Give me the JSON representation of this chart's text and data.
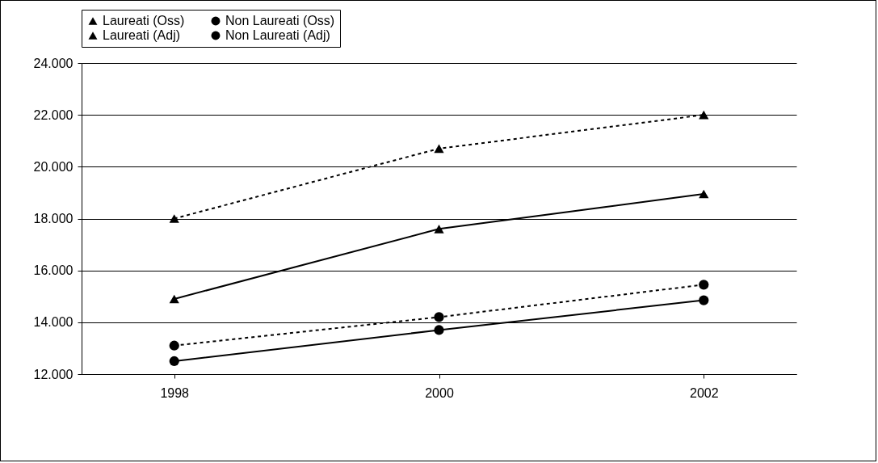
{
  "chart_data": {
    "type": "line",
    "categories": [
      "1998",
      "2000",
      "2002"
    ],
    "series": [
      {
        "name": "Laureati (Oss)",
        "color": "#000000",
        "marker": "triangle",
        "line_style": "dashed",
        "values": [
          18000,
          20700,
          22000
        ]
      },
      {
        "name": "Non Laureati (Oss)",
        "color": "#000000",
        "marker": "circle",
        "line_style": "dashed",
        "values": [
          13100,
          14200,
          15450
        ]
      },
      {
        "name": "Laureati (Adj)",
        "color": "#000000",
        "marker": "triangle",
        "line_style": "solid",
        "values": [
          14900,
          17600,
          18950
        ]
      },
      {
        "name": "Non Laureati (Adj)",
        "color": "#000000",
        "marker": "circle",
        "line_style": "solid",
        "values": [
          12500,
          13700,
          14850
        ]
      }
    ],
    "ylim": [
      12000,
      24000
    ],
    "yticks": [
      {
        "value": 12000,
        "label": "12.000"
      },
      {
        "value": 14000,
        "label": "14.000"
      },
      {
        "value": 16000,
        "label": "16.000"
      },
      {
        "value": 18000,
        "label": "18.000"
      },
      {
        "value": 20000,
        "label": "20.000"
      },
      {
        "value": 22000,
        "label": "22.000"
      },
      {
        "value": 24000,
        "label": "24.000"
      }
    ],
    "grid": "y",
    "legend": "top"
  }
}
